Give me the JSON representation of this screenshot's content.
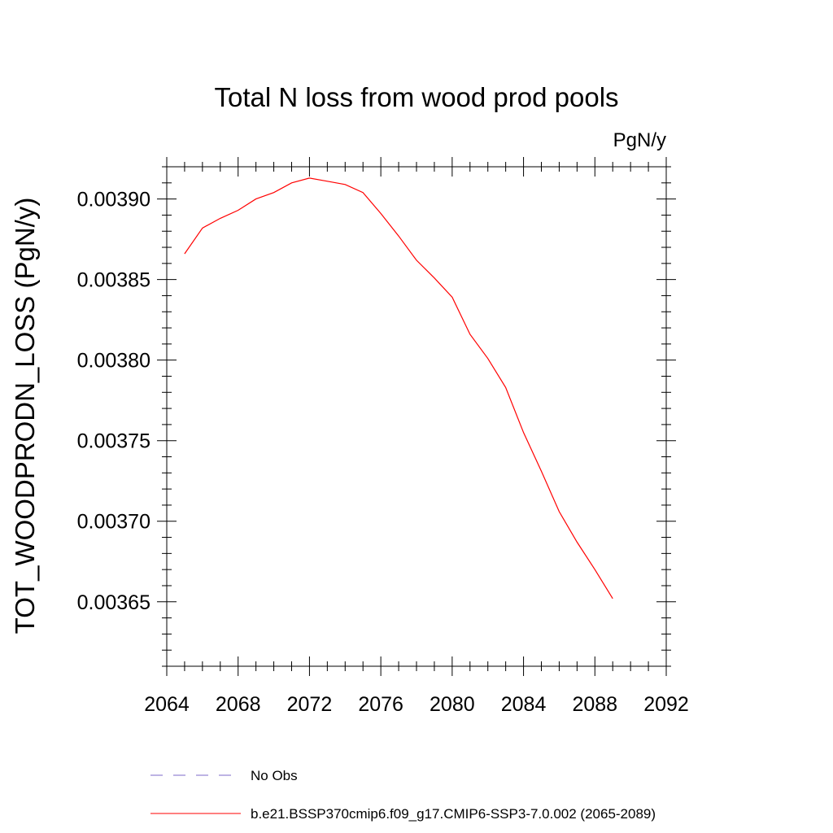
{
  "chart_data": {
    "type": "line",
    "title": "Total N loss from wood prod pools",
    "units_label": "PgN/y",
    "xlabel": "",
    "ylabel": "TOT_WOODPRODN_LOSS  (PgN/y)",
    "xlim": [
      2064,
      2092
    ],
    "ylim": [
      0.00361,
      0.00392
    ],
    "x_ticks": [
      2064,
      2068,
      2072,
      2076,
      2080,
      2084,
      2088,
      2092
    ],
    "x_tick_labels": [
      "2064",
      "2068",
      "2072",
      "2076",
      "2080",
      "2084",
      "2088",
      "2092"
    ],
    "y_ticks": [
      0.00365,
      0.0037,
      0.00375,
      0.0038,
      0.00385,
      0.0039
    ],
    "y_tick_labels": [
      "0.00365",
      "0.00370",
      "0.00375",
      "0.00380",
      "0.00385",
      "0.00390"
    ],
    "grid": false,
    "legend_placement": "bottom",
    "series": [
      {
        "name": "b.e21.BSSP370cmip6.f09_g17.CMIP6-SSP3-7.0.002 (2065-2089)",
        "color": "#ff0000",
        "style": "solid",
        "x": [
          2065,
          2066,
          2067,
          2068,
          2069,
          2070,
          2071,
          2072,
          2073,
          2074,
          2075,
          2076,
          2077,
          2078,
          2079,
          2080,
          2081,
          2082,
          2083,
          2084,
          2085,
          2086,
          2087,
          2088,
          2089
        ],
        "y": [
          0.003866,
          0.003882,
          0.003888,
          0.003893,
          0.0039,
          0.003904,
          0.00391,
          0.003913,
          0.003911,
          0.003909,
          0.003904,
          0.003891,
          0.003877,
          0.003862,
          0.003851,
          0.003839,
          0.003816,
          0.003801,
          0.003783,
          0.003755,
          0.003731,
          0.003706,
          0.003687,
          0.00367,
          0.003652
        ]
      }
    ],
    "legend": [
      {
        "label": "No Obs",
        "color": "#7b68c8",
        "style": "dashed"
      },
      {
        "label": "b.e21.BSSP370cmip6.f09_g17.CMIP6-SSP3-7.0.002 (2065-2089)",
        "color": "#ff0000",
        "style": "solid"
      }
    ]
  }
}
